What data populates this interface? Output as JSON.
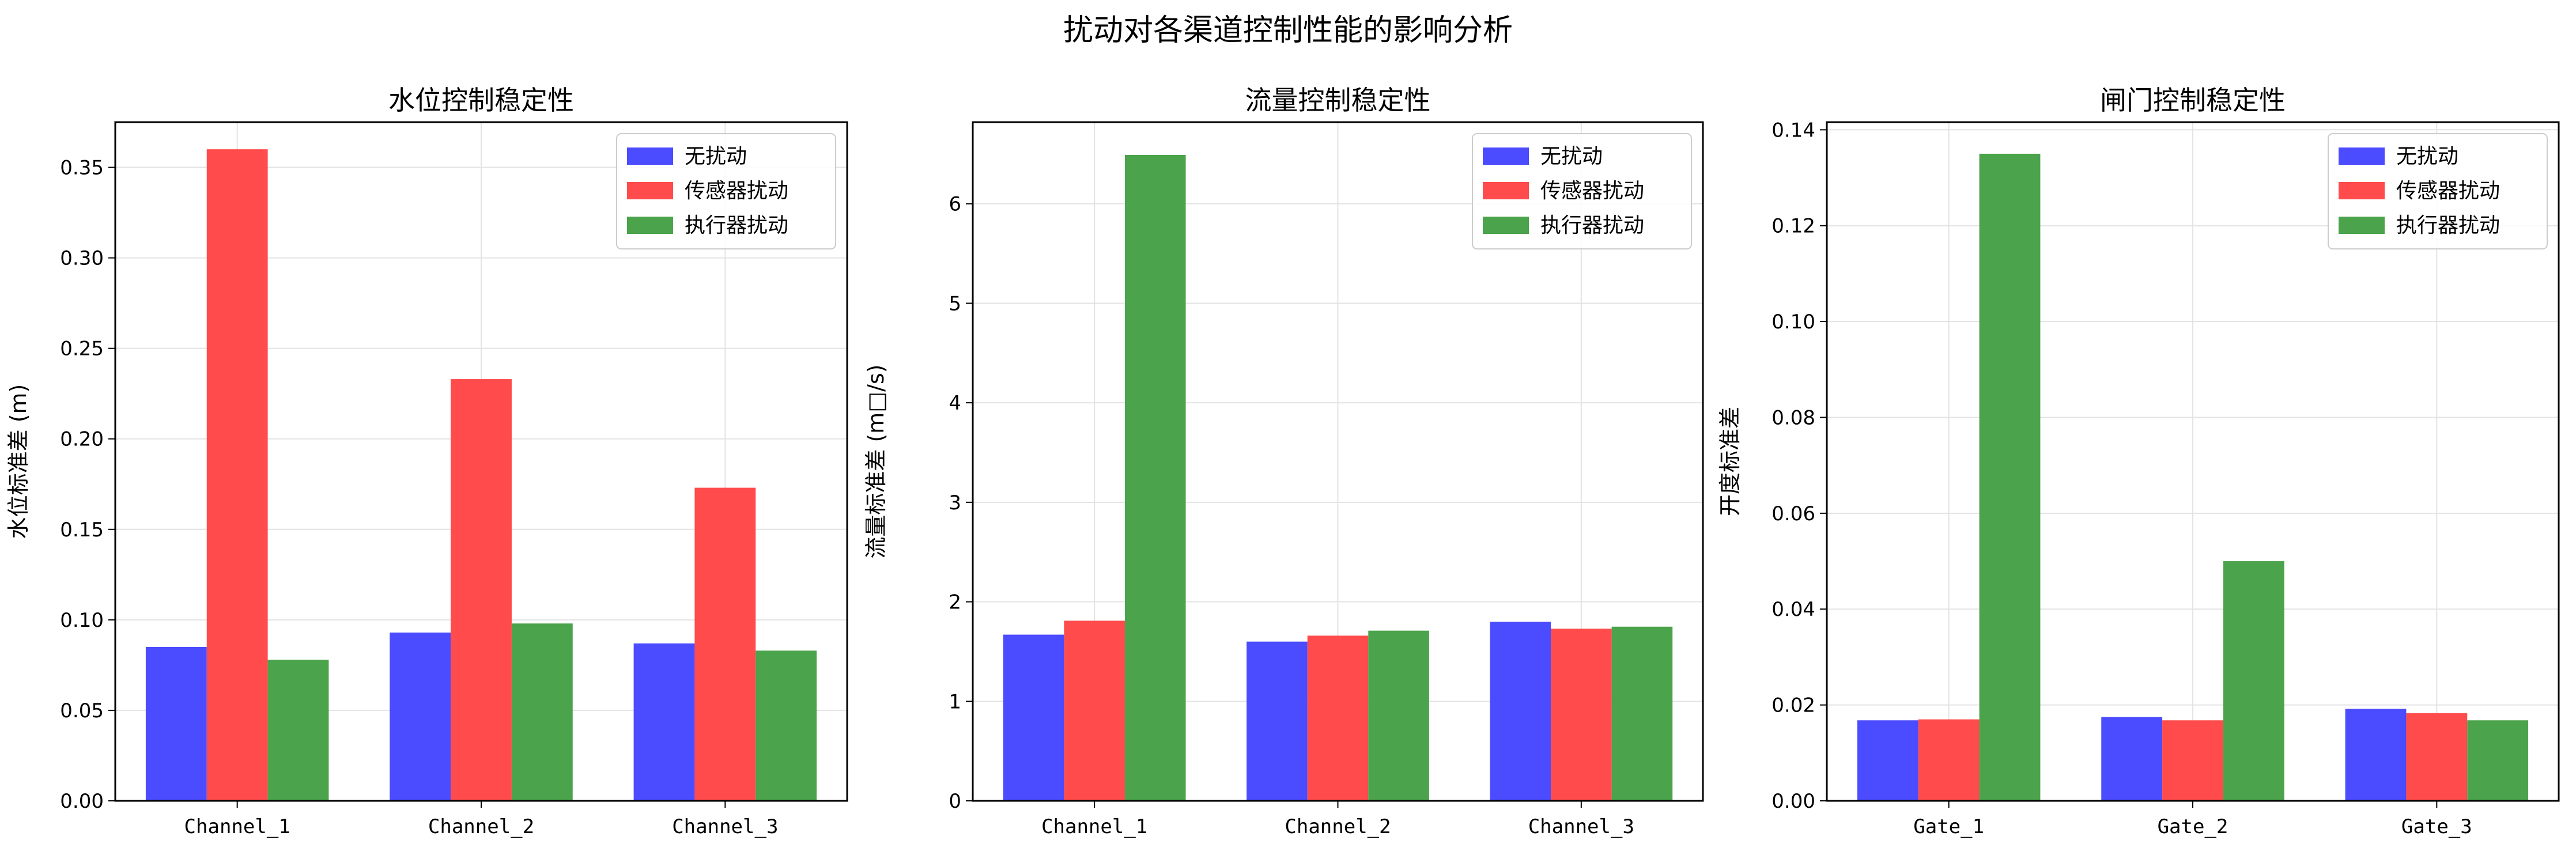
{
  "figure_title": "扰动对各渠道控制性能的影响分析",
  "chart_data": [
    {
      "type": "bar",
      "title": "水位控制稳定性",
      "ylabel": "水位标准差 (m)",
      "xlabel": "",
      "categories": [
        "Channel_1",
        "Channel_2",
        "Channel_3"
      ],
      "ylim": [
        0,
        0.375
      ],
      "yticks": [
        0.0,
        0.05,
        0.1,
        0.15,
        0.2,
        0.25,
        0.3,
        0.35
      ],
      "ytick_labels": [
        "0.00",
        "0.05",
        "0.10",
        "0.15",
        "0.20",
        "0.25",
        "0.30",
        "0.35"
      ],
      "grid": true,
      "legend_position": "top-right",
      "series": [
        {
          "name": "无扰动",
          "color": "#4B4BFF",
          "values": [
            0.085,
            0.093,
            0.087
          ]
        },
        {
          "name": "传感器扰动",
          "color": "#FF4B4B",
          "values": [
            0.36,
            0.233,
            0.173
          ]
        },
        {
          "name": "执行器扰动",
          "color": "#4BA34B",
          "values": [
            0.078,
            0.098,
            0.083
          ]
        }
      ]
    },
    {
      "type": "bar",
      "title": "流量控制稳定性",
      "ylabel": "流量标准差 (m□/s)",
      "xlabel": "",
      "categories": [
        "Channel_1",
        "Channel_2",
        "Channel_3"
      ],
      "ylim": [
        0,
        6.82
      ],
      "yticks": [
        0,
        1,
        2,
        3,
        4,
        5,
        6
      ],
      "ytick_labels": [
        "0",
        "1",
        "2",
        "3",
        "4",
        "5",
        "6"
      ],
      "grid": true,
      "legend_position": "top-right",
      "series": [
        {
          "name": "无扰动",
          "color": "#4B4BFF",
          "values": [
            1.67,
            1.6,
            1.8
          ]
        },
        {
          "name": "传感器扰动",
          "color": "#FF4B4B",
          "values": [
            1.81,
            1.66,
            1.73
          ]
        },
        {
          "name": "执行器扰动",
          "color": "#4BA34B",
          "values": [
            6.49,
            1.71,
            1.75
          ]
        }
      ]
    },
    {
      "type": "bar",
      "title": "闸门控制稳定性",
      "ylabel": "开度标准差",
      "xlabel": "",
      "categories": [
        "Gate_1",
        "Gate_2",
        "Gate_3"
      ],
      "ylim": [
        0,
        0.1416
      ],
      "yticks": [
        0.0,
        0.02,
        0.04,
        0.06,
        0.08,
        0.1,
        0.12,
        0.14
      ],
      "ytick_labels": [
        "0.00",
        "0.02",
        "0.04",
        "0.06",
        "0.08",
        "0.10",
        "0.12",
        "0.14"
      ],
      "grid": true,
      "legend_position": "top-right",
      "series": [
        {
          "name": "无扰动",
          "color": "#4B4BFF",
          "values": [
            0.0168,
            0.0175,
            0.0192
          ]
        },
        {
          "name": "传感器扰动",
          "color": "#FF4B4B",
          "values": [
            0.017,
            0.0168,
            0.0183
          ]
        },
        {
          "name": "执行器扰动",
          "color": "#4BA34B",
          "values": [
            0.135,
            0.05,
            0.0168
          ]
        }
      ]
    }
  ]
}
